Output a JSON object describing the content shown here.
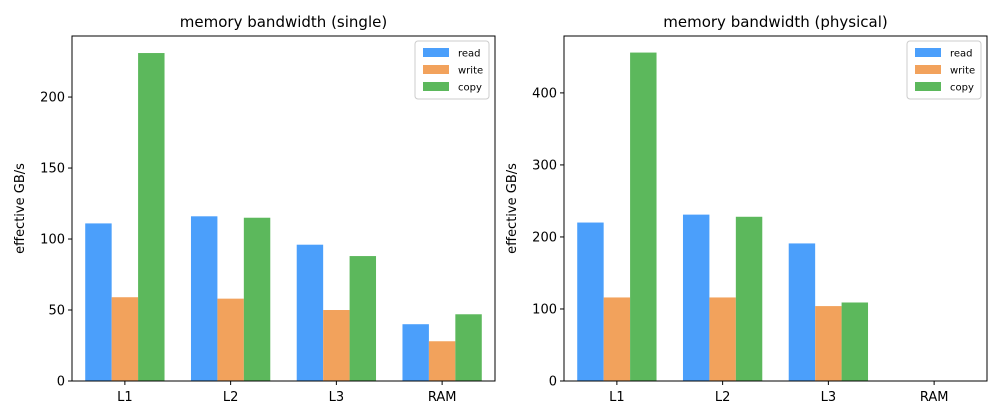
{
  "colors": {
    "read": "#4b9ffb",
    "write": "#f2a25c",
    "copy": "#5cb85c"
  },
  "chart_data": [
    {
      "type": "bar",
      "title": "memory bandwidth (single)",
      "xlabel": "",
      "ylabel": "effective GB/s",
      "categories": [
        "L1",
        "L2",
        "L3",
        "RAM"
      ],
      "series": [
        {
          "name": "read",
          "values": [
            111,
            116,
            96,
            40
          ]
        },
        {
          "name": "write",
          "values": [
            59,
            58,
            50,
            28
          ]
        },
        {
          "name": "copy",
          "values": [
            231,
            115,
            88,
            47
          ]
        }
      ],
      "ylim": [
        0,
        243
      ],
      "yticks": [
        0,
        50,
        100,
        150,
        200
      ],
      "legend": "top-right"
    },
    {
      "type": "bar",
      "title": "memory bandwidth (physical)",
      "xlabel": "",
      "ylabel": "effective GB/s",
      "categories": [
        "L1",
        "L2",
        "L3",
        "RAM"
      ],
      "series": [
        {
          "name": "read",
          "values": [
            220,
            231,
            191,
            0
          ]
        },
        {
          "name": "write",
          "values": [
            116,
            116,
            104,
            0
          ]
        },
        {
          "name": "copy",
          "values": [
            456,
            228,
            109,
            0
          ]
        }
      ],
      "ylim": [
        0,
        479
      ],
      "yticks": [
        0,
        100,
        200,
        300,
        400
      ],
      "legend": "top-right"
    }
  ]
}
